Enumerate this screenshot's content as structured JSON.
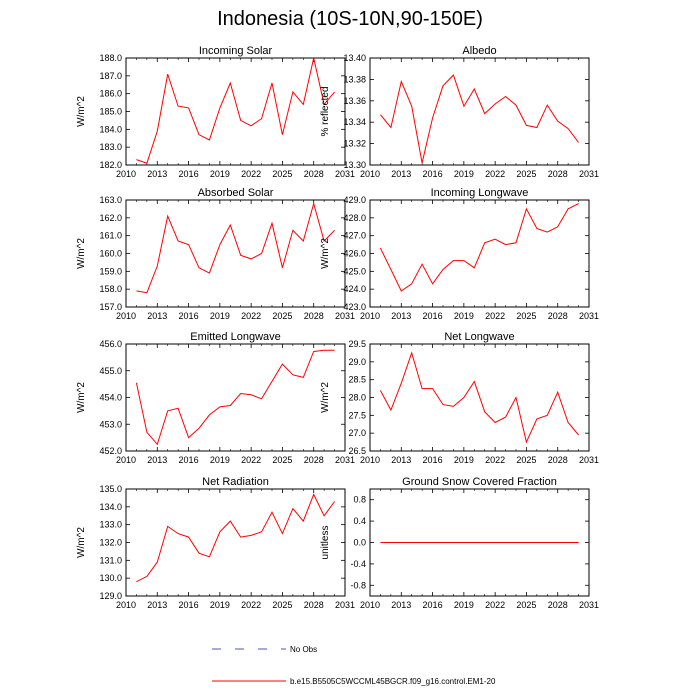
{
  "figure": {
    "title": "Indonesia (10S-10N,90-150E)"
  },
  "colors": {
    "series": "#ff0000",
    "obs": "#4a55b8",
    "axis": "#000000"
  },
  "legend": {
    "obs_label": "No Obs",
    "model_label": "b.e15.B5505C5WCCML45BGCR.f09_g16.control.EM1-20"
  },
  "chart_data": [
    {
      "type": "line",
      "title": "Incoming Solar",
      "ylabel": "W/m^2",
      "xlabel": "",
      "xlim": [
        2010,
        2031
      ],
      "xticks": [
        2010,
        2013,
        2016,
        2019,
        2022,
        2025,
        2028,
        2031
      ],
      "ylim": [
        182.0,
        188.0
      ],
      "yticks": [
        182.0,
        183.0,
        184.0,
        185.0,
        186.0,
        187.0,
        188.0
      ],
      "ytick_labels": [
        "182.0",
        "183.0",
        "184.0",
        "185.0",
        "186.0",
        "187.0",
        "188.0"
      ],
      "x": [
        2011,
        2012,
        2013,
        2014,
        2015,
        2016,
        2017,
        2018,
        2019,
        2020,
        2021,
        2022,
        2023,
        2024,
        2025,
        2026,
        2027,
        2028,
        2029,
        2030
      ],
      "series": [
        {
          "name": "b.e15.B5505C5WCCML45BGCR.f09_g16.control.EM1-20",
          "values": [
            182.3,
            182.1,
            183.9,
            187.1,
            185.3,
            185.2,
            183.7,
            183.4,
            185.2,
            186.6,
            184.5,
            184.2,
            184.6,
            186.6,
            183.7,
            186.1,
            185.4,
            188.0,
            185.4,
            186.1
          ]
        }
      ]
    },
    {
      "type": "line",
      "title": "Albedo",
      "ylabel": "% reflected",
      "xlabel": "",
      "xlim": [
        2010,
        2031
      ],
      "xticks": [
        2010,
        2013,
        2016,
        2019,
        2022,
        2025,
        2028,
        2031
      ],
      "ylim": [
        13.3,
        13.4
      ],
      "yticks": [
        13.3,
        13.32,
        13.34,
        13.36,
        13.38,
        13.4
      ],
      "ytick_labels": [
        "13.30",
        "13.32",
        "13.34",
        "13.36",
        "13.38",
        "13.40"
      ],
      "x": [
        2011,
        2012,
        2013,
        2014,
        2015,
        2016,
        2017,
        2018,
        2019,
        2020,
        2021,
        2022,
        2023,
        2024,
        2025,
        2026,
        2027,
        2028,
        2029,
        2030
      ],
      "series": [
        {
          "name": "b.e15.B5505C5WCCML45BGCR.f09_g16.control.EM1-20",
          "values": [
            13.347,
            13.335,
            13.378,
            13.355,
            13.302,
            13.344,
            13.374,
            13.384,
            13.355,
            13.371,
            13.348,
            13.357,
            13.364,
            13.356,
            13.337,
            13.335,
            13.356,
            13.341,
            13.334,
            13.321
          ]
        }
      ]
    },
    {
      "type": "line",
      "title": "Absorbed Solar",
      "ylabel": "W/m^2",
      "xlabel": "",
      "xlim": [
        2010,
        2031
      ],
      "xticks": [
        2010,
        2013,
        2016,
        2019,
        2022,
        2025,
        2028,
        2031
      ],
      "ylim": [
        157.0,
        163.0
      ],
      "yticks": [
        157.0,
        158.0,
        159.0,
        160.0,
        161.0,
        162.0,
        163.0
      ],
      "ytick_labels": [
        "157.0",
        "158.0",
        "159.0",
        "160.0",
        "161.0",
        "162.0",
        "163.0"
      ],
      "x": [
        2011,
        2012,
        2013,
        2014,
        2015,
        2016,
        2017,
        2018,
        2019,
        2020,
        2021,
        2022,
        2023,
        2024,
        2025,
        2026,
        2027,
        2028,
        2029,
        2030
      ],
      "series": [
        {
          "name": "b.e15.B5505C5WCCML45BGCR.f09_g16.control.EM1-20",
          "values": [
            157.9,
            157.8,
            159.3,
            162.1,
            160.7,
            160.5,
            159.2,
            158.9,
            160.5,
            161.6,
            159.9,
            159.7,
            160.0,
            161.7,
            159.2,
            161.3,
            160.7,
            162.8,
            160.7,
            161.3
          ]
        }
      ]
    },
    {
      "type": "line",
      "title": "Incoming Longwave",
      "ylabel": "W/m^2",
      "xlabel": "",
      "xlim": [
        2010,
        2031
      ],
      "xticks": [
        2010,
        2013,
        2016,
        2019,
        2022,
        2025,
        2028,
        2031
      ],
      "ylim": [
        423.0,
        429.0
      ],
      "yticks": [
        423.0,
        424.0,
        425.0,
        426.0,
        427.0,
        428.0,
        429.0
      ],
      "ytick_labels": [
        "423.0",
        "424.0",
        "425.0",
        "426.0",
        "427.0",
        "428.0",
        "429.0"
      ],
      "x": [
        2011,
        2012,
        2013,
        2014,
        2015,
        2016,
        2017,
        2018,
        2019,
        2020,
        2021,
        2022,
        2023,
        2024,
        2025,
        2026,
        2027,
        2028,
        2029,
        2030
      ],
      "series": [
        {
          "name": "b.e15.B5505C5WCCML45BGCR.f09_g16.control.EM1-20",
          "values": [
            426.3,
            425.1,
            423.9,
            424.3,
            425.4,
            424.3,
            425.1,
            425.6,
            425.6,
            425.2,
            426.6,
            426.8,
            426.5,
            426.6,
            428.5,
            427.4,
            427.2,
            427.5,
            428.5,
            428.8
          ]
        }
      ]
    },
    {
      "type": "line",
      "title": "Emitted Longwave",
      "ylabel": "W/m^2",
      "xlabel": "",
      "xlim": [
        2010,
        2031
      ],
      "xticks": [
        2010,
        2013,
        2016,
        2019,
        2022,
        2025,
        2028,
        2031
      ],
      "ylim": [
        452.0,
        456.0
      ],
      "yticks": [
        452.0,
        453.0,
        454.0,
        455.0,
        456.0
      ],
      "ytick_labels": [
        "452.0",
        "453.0",
        "454.0",
        "455.0",
        "456.0"
      ],
      "x": [
        2011,
        2012,
        2013,
        2014,
        2015,
        2016,
        2017,
        2018,
        2019,
        2020,
        2021,
        2022,
        2023,
        2024,
        2025,
        2026,
        2027,
        2028,
        2029,
        2030
      ],
      "series": [
        {
          "name": "b.e15.B5505C5WCCML45BGCR.f09_g16.control.EM1-20",
          "values": [
            454.55,
            452.7,
            452.25,
            453.5,
            453.6,
            452.5,
            452.85,
            453.35,
            453.65,
            453.7,
            454.15,
            454.1,
            453.95,
            454.6,
            455.25,
            454.85,
            454.75,
            455.72,
            455.77,
            455.77
          ]
        }
      ]
    },
    {
      "type": "line",
      "title": "Net Longwave",
      "ylabel": "W/m^2",
      "xlabel": "",
      "xlim": [
        2010,
        2031
      ],
      "xticks": [
        2010,
        2013,
        2016,
        2019,
        2022,
        2025,
        2028,
        2031
      ],
      "ylim": [
        26.5,
        29.5
      ],
      "yticks": [
        26.5,
        27.0,
        27.5,
        28.0,
        28.5,
        29.0,
        29.5
      ],
      "ytick_labels": [
        "26.5",
        "27.0",
        "27.5",
        "28.0",
        "28.5",
        "29.0",
        "29.5"
      ],
      "x": [
        2011,
        2012,
        2013,
        2014,
        2015,
        2016,
        2017,
        2018,
        2019,
        2020,
        2021,
        2022,
        2023,
        2024,
        2025,
        2026,
        2027,
        2028,
        2029,
        2030
      ],
      "series": [
        {
          "name": "b.e15.B5505C5WCCML45BGCR.f09_g16.control.EM1-20",
          "values": [
            28.2,
            27.65,
            28.4,
            29.25,
            28.25,
            28.25,
            27.8,
            27.75,
            28.0,
            28.45,
            27.6,
            27.3,
            27.45,
            28.0,
            26.75,
            27.4,
            27.5,
            28.15,
            27.3,
            26.95
          ]
        }
      ]
    },
    {
      "type": "line",
      "title": "Net Radiation",
      "ylabel": "W/m^2",
      "xlabel": "",
      "xlim": [
        2010,
        2031
      ],
      "xticks": [
        2010,
        2013,
        2016,
        2019,
        2022,
        2025,
        2028,
        2031
      ],
      "ylim": [
        129.0,
        135.0
      ],
      "yticks": [
        129.0,
        130.0,
        131.0,
        132.0,
        133.0,
        134.0,
        135.0
      ],
      "ytick_labels": [
        "129.0",
        "130.0",
        "131.0",
        "132.0",
        "133.0",
        "134.0",
        "135.0"
      ],
      "x": [
        2011,
        2012,
        2013,
        2014,
        2015,
        2016,
        2017,
        2018,
        2019,
        2020,
        2021,
        2022,
        2023,
        2024,
        2025,
        2026,
        2027,
        2028,
        2029,
        2030
      ],
      "series": [
        {
          "name": "b.e15.B5505C5WCCML45BGCR.f09_g16.control.EM1-20",
          "values": [
            129.8,
            130.1,
            130.9,
            132.9,
            132.5,
            132.3,
            131.4,
            131.2,
            132.6,
            133.2,
            132.3,
            132.4,
            132.6,
            133.7,
            132.5,
            133.9,
            133.2,
            134.7,
            133.5,
            134.3
          ]
        }
      ]
    },
    {
      "type": "line",
      "title": "Ground Snow Covered Fraction",
      "ylabel": "unitless",
      "xlabel": "",
      "xlim": [
        2010,
        2031
      ],
      "xticks": [
        2010,
        2013,
        2016,
        2019,
        2022,
        2025,
        2028,
        2031
      ],
      "ylim": [
        -1.0,
        1.0
      ],
      "yticks": [
        -0.8,
        -0.4,
        0.0,
        0.4,
        0.8
      ],
      "ytick_labels": [
        "-0.8",
        "-0.4",
        "0.0",
        "0.4",
        "0.8"
      ],
      "x": [
        2011,
        2012,
        2013,
        2014,
        2015,
        2016,
        2017,
        2018,
        2019,
        2020,
        2021,
        2022,
        2023,
        2024,
        2025,
        2026,
        2027,
        2028,
        2029,
        2030
      ],
      "series": [
        {
          "name": "b.e15.B5505C5WCCML45BGCR.f09_g16.control.EM1-20",
          "values": [
            0,
            0,
            0,
            0,
            0,
            0,
            0,
            0,
            0,
            0,
            0,
            0,
            0,
            0,
            0,
            0,
            0,
            0,
            0,
            0
          ]
        }
      ]
    }
  ]
}
